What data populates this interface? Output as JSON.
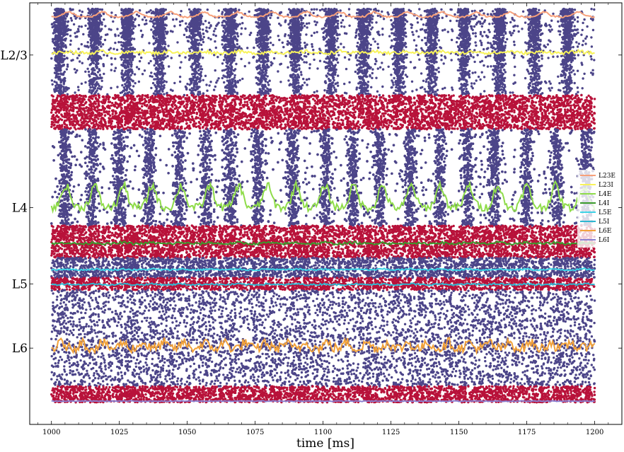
{
  "chart_data": {
    "type": "scatter",
    "title": "",
    "xlabel": "time [ms]",
    "ylabel": "",
    "xlim": [
      992,
      1210
    ],
    "ylim": [
      -0.05,
      1.0
    ],
    "x_ticks": [
      1000,
      1025,
      1050,
      1075,
      1100,
      1125,
      1150,
      1175,
      1200
    ],
    "y_tick_labels": [
      {
        "label": "L2/3",
        "value": 0.87
      },
      {
        "label": "L4",
        "value": 0.49
      },
      {
        "label": "L5",
        "value": 0.3
      },
      {
        "label": "L6",
        "value": 0.14
      }
    ],
    "grid": false,
    "legend_position": "right",
    "spike_bands": [
      {
        "population": "L23E",
        "color": "#4c4589",
        "y_range": [
          0.92,
          0.985
        ],
        "density": 0.9,
        "bursts": [
          1003,
          1016,
          1028,
          1040,
          1053,
          1066,
          1078,
          1090,
          1103,
          1115,
          1128,
          1140,
          1152,
          1165,
          1178,
          1190
        ]
      },
      {
        "population": "L23E",
        "color": "#4c4589",
        "y_range": [
          0.86,
          0.92
        ],
        "density": 0.6,
        "bursts": [
          1003,
          1016,
          1028,
          1040,
          1053,
          1066,
          1078,
          1090,
          1103,
          1115,
          1128,
          1140,
          1152,
          1165,
          1178,
          1190
        ]
      },
      {
        "population": "L23E",
        "color": "#4c4589",
        "y_range": [
          0.77,
          0.86
        ],
        "density": 0.35,
        "bursts": [
          1003,
          1016,
          1028,
          1040,
          1053,
          1066,
          1078,
          1090,
          1103,
          1115,
          1128,
          1140,
          1152,
          1165,
          1178,
          1190
        ]
      },
      {
        "population": "L23I",
        "color": "#b8123a",
        "y_range": [
          0.685,
          0.77
        ],
        "density": 1.0,
        "bursts": []
      },
      {
        "population": "L4E",
        "color": "#4c4589",
        "y_range": [
          0.445,
          0.685
        ],
        "density": 1.0,
        "bursts": [
          1005,
          1015,
          1025,
          1036,
          1047,
          1057,
          1066,
          1076,
          1089,
          1101,
          1111,
          1121,
          1132,
          1143,
          1153,
          1163,
          1175,
          1186,
          1197
        ]
      },
      {
        "population": "L4I",
        "color": "#b8123a",
        "y_range": [
          0.365,
          0.445
        ],
        "density": 1.0,
        "bursts": []
      },
      {
        "population": "L5E",
        "color": "#4c4589",
        "y_range": [
          0.315,
          0.365
        ],
        "density": 0.8,
        "bursts": []
      },
      {
        "population": "L5I",
        "color": "#b8123a",
        "y_range": [
          0.285,
          0.315
        ],
        "density": 1.0,
        "bursts": []
      },
      {
        "population": "L6E",
        "color": "#4c4589",
        "y_range": [
          0.045,
          0.285
        ],
        "density": 0.3,
        "bursts": []
      },
      {
        "population": "L6I",
        "color": "#b8123a",
        "y_range": [
          0.005,
          0.045
        ],
        "density": 1.0,
        "bursts": []
      }
    ],
    "series": [
      {
        "name": "L23E",
        "color": "#f7a07a",
        "baseline": 0.965,
        "amplitude": 0.012,
        "period": 12.5,
        "noise": 0.002
      },
      {
        "name": "L23I",
        "color": "#f8f35a",
        "baseline": 0.875,
        "amplitude": 0.004,
        "period": 12.5,
        "noise": 0.004
      },
      {
        "name": "L4E",
        "color": "#8fdc4a",
        "baseline": 0.49,
        "amplitude": 0.055,
        "period": 10.6,
        "noise": 0.01
      },
      {
        "name": "L4I",
        "color": "#3a9a2c",
        "baseline": 0.4,
        "amplitude": 0.003,
        "period": 10.6,
        "noise": 0.003
      },
      {
        "name": "L5E",
        "color": "#3ed3e6",
        "baseline": 0.335,
        "amplitude": 0.002,
        "period": 10.6,
        "noise": 0.002
      },
      {
        "name": "L5I",
        "color": "#2fb7d1",
        "baseline": 0.298,
        "amplitude": 0.002,
        "period": 10.6,
        "noise": 0.002
      },
      {
        "name": "L6E",
        "color": "#f2a23a",
        "baseline": 0.14,
        "amplitude": 0.015,
        "period": 7.5,
        "noise": 0.012
      },
      {
        "name": "L6I",
        "color": "#8a7fd0",
        "baseline": 0.008,
        "amplitude": 0.0,
        "period": 10,
        "noise": 0.001
      }
    ]
  }
}
